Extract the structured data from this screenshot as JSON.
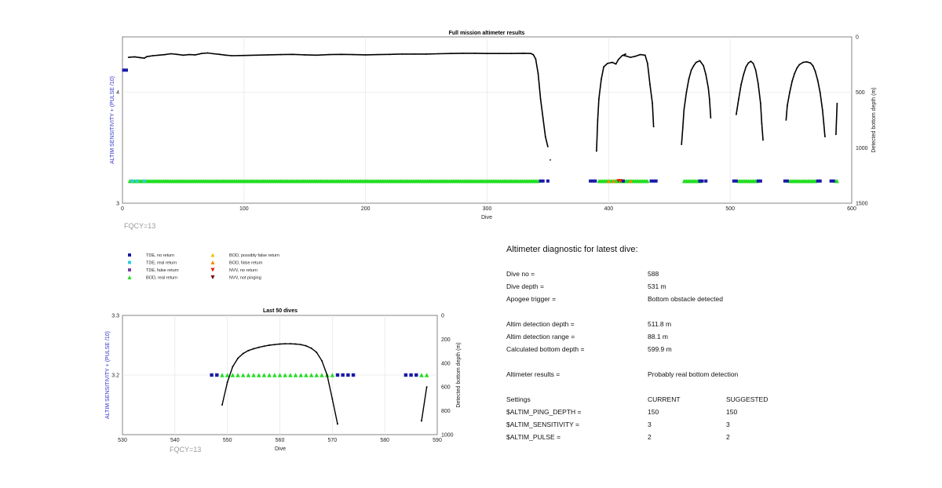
{
  "colors": {
    "tde_no_return": "#1a1aa8",
    "tde_real_return": "#33ccdd",
    "tde_false_return": "#7a3fa8",
    "bod_real_return": "#22dd22",
    "bod_possibly_false": "#f0c000",
    "bod_false_return": "#f08a00",
    "nvv_no_return": "#dd2200",
    "nvv_not_pinging": "#770000",
    "depth_line": "#000000",
    "left_axis_label": "#3333cc"
  },
  "chart_data": [
    {
      "type": "scatter",
      "title": "Full mission altimeter results",
      "xlabel": "Dive",
      "ylabel": "ALTIM SENSITIVITY + (PULSE /10)",
      "y2label": "Detected bottom depth (m)",
      "xlim": [
        0,
        600
      ],
      "ylim": [
        3,
        4.5
      ],
      "y2lim": [
        1500,
        0
      ],
      "x_ticks": [
        "0",
        "100",
        "200",
        "300",
        "400",
        "500",
        "600"
      ],
      "y_ticks": [
        "3",
        "4"
      ],
      "y2_ticks": [
        "0",
        "500",
        "1000",
        "1500"
      ],
      "grid": true,
      "footnote": "FQCY=13",
      "depth_segments": [
        [
          [
            5,
            185
          ],
          [
            10,
            180
          ],
          [
            15,
            188
          ],
          [
            18,
            192
          ],
          [
            20,
            178
          ],
          [
            25,
            170
          ],
          [
            30,
            165
          ],
          [
            35,
            160
          ],
          [
            40,
            152
          ],
          [
            45,
            158
          ],
          [
            50,
            165
          ],
          [
            55,
            160
          ],
          [
            60,
            162
          ],
          [
            65,
            150
          ],
          [
            70,
            145
          ],
          [
            75,
            152
          ],
          [
            80,
            158
          ],
          [
            85,
            165
          ],
          [
            90,
            170
          ],
          [
            100,
            168
          ],
          [
            110,
            165
          ],
          [
            120,
            162
          ],
          [
            130,
            160
          ],
          [
            140,
            158
          ],
          [
            150,
            162
          ],
          [
            160,
            165
          ],
          [
            170,
            160
          ],
          [
            180,
            158
          ],
          [
            190,
            160
          ],
          [
            200,
            162
          ],
          [
            210,
            160
          ],
          [
            220,
            158
          ],
          [
            230,
            155
          ],
          [
            240,
            155
          ],
          [
            250,
            155
          ],
          [
            260,
            152
          ],
          [
            270,
            150
          ],
          [
            280,
            148
          ],
          [
            290,
            148
          ],
          [
            300,
            150
          ],
          [
            310,
            150
          ],
          [
            320,
            150
          ],
          [
            330,
            148
          ],
          [
            336,
            150
          ],
          [
            338,
            160
          ],
          [
            340,
            200
          ],
          [
            342,
            330
          ],
          [
            344,
            560
          ],
          [
            346,
            730
          ],
          [
            348,
            900
          ],
          [
            350,
            990
          ]
        ],
        [
          [
            352,
            1110
          ]
        ],
        [
          [
            390,
            1030
          ],
          [
            391,
            750
          ],
          [
            392,
            560
          ],
          [
            394,
            380
          ],
          [
            396,
            270
          ],
          [
            399,
            240
          ],
          [
            403,
            230
          ],
          [
            406,
            245
          ],
          [
            408,
            205
          ],
          [
            411,
            170
          ],
          [
            414,
            155
          ]
        ],
        [
          [
            412,
            165
          ],
          [
            418,
            185
          ],
          [
            422,
            175
          ],
          [
            426,
            160
          ],
          [
            430,
            165
          ],
          [
            432,
            240
          ],
          [
            434,
            430
          ],
          [
            436,
            600
          ],
          [
            437,
            810
          ]
        ],
        [
          [
            460,
            970
          ],
          [
            461,
            820
          ],
          [
            462,
            660
          ],
          [
            464,
            500
          ],
          [
            466,
            380
          ],
          [
            468,
            300
          ],
          [
            470,
            260
          ],
          [
            472,
            230
          ],
          [
            475,
            215
          ],
          [
            478,
            260
          ],
          [
            480,
            340
          ],
          [
            482,
            460
          ],
          [
            483,
            560
          ],
          [
            484,
            730
          ]
        ],
        [
          [
            505,
            700
          ],
          [
            507,
            560
          ],
          [
            509,
            430
          ],
          [
            511,
            340
          ],
          [
            513,
            270
          ],
          [
            515,
            235
          ],
          [
            517,
            220
          ],
          [
            519,
            240
          ],
          [
            521,
            300
          ],
          [
            523,
            420
          ],
          [
            525,
            600
          ],
          [
            526,
            780
          ],
          [
            527,
            930
          ]
        ],
        [
          [
            546,
            750
          ],
          [
            547,
            620
          ],
          [
            549,
            500
          ],
          [
            551,
            400
          ],
          [
            553,
            330
          ],
          [
            555,
            280
          ],
          [
            557,
            250
          ],
          [
            560,
            230
          ],
          [
            563,
            225
          ],
          [
            566,
            235
          ],
          [
            568,
            260
          ],
          [
            570,
            310
          ],
          [
            572,
            390
          ],
          [
            574,
            500
          ],
          [
            576,
            660
          ],
          [
            577,
            780
          ],
          [
            578,
            900
          ]
        ],
        [
          [
            587,
            880
          ],
          [
            588,
            600
          ]
        ]
      ],
      "markers": {
        "left_marker_y": 4.2,
        "row_y": 3.2,
        "tde_no_return_x": [
          344,
          346,
          350,
          385,
          387,
          389,
          412,
          435,
          437,
          439,
          475,
          477,
          480,
          503,
          505,
          523,
          525,
          545,
          547,
          572,
          574,
          583,
          585
        ],
        "tde_real_return_x": [
          8,
          12,
          18
        ],
        "bod_real_return_range": [
          [
            6,
            342
          ],
          [
            392,
            432
          ],
          [
            462,
            476
          ],
          [
            507,
            522
          ],
          [
            549,
            570
          ],
          [
            587,
            588
          ]
        ],
        "bod_false_return_x": [
          400,
          404,
          418
        ],
        "nvv_no_return_x": [
          408,
          410
        ]
      }
    },
    {
      "type": "scatter",
      "title": "Last 50 dives",
      "xlabel": "Dive",
      "ylabel": "ALTIM SENSITIVITY + (PULSE /10)",
      "y2label": "Detected bottom depth (m)",
      "xlim": [
        530,
        590
      ],
      "ylim": [
        3.1,
        3.3
      ],
      "y2lim": [
        1000,
        0
      ],
      "x_ticks": [
        "530",
        "540",
        "550",
        "560",
        "570",
        "580",
        "590"
      ],
      "y_ticks": [
        "3.2",
        "3.3"
      ],
      "y2_ticks": [
        "0",
        "200",
        "400",
        "600",
        "800",
        "1000"
      ],
      "grid": true,
      "footnote": "FQCY=13",
      "depth_segments": [
        [
          [
            549,
            750
          ],
          [
            550,
            560
          ],
          [
            551,
            430
          ],
          [
            552,
            360
          ],
          [
            553,
            320
          ],
          [
            554,
            295
          ],
          [
            555,
            280
          ],
          [
            556,
            268
          ],
          [
            557,
            258
          ],
          [
            558,
            250
          ],
          [
            559,
            245
          ],
          [
            560,
            240
          ],
          [
            561,
            238
          ],
          [
            562,
            238
          ],
          [
            563,
            240
          ],
          [
            564,
            245
          ],
          [
            565,
            255
          ],
          [
            566,
            275
          ],
          [
            567,
            310
          ],
          [
            568,
            380
          ],
          [
            569,
            500
          ],
          [
            570,
            700
          ],
          [
            571,
            910
          ]
        ],
        [
          [
            587,
            885
          ],
          [
            588,
            600
          ]
        ]
      ],
      "markers": {
        "row_y": 3.2,
        "tde_no_return_x": [
          547,
          548,
          571,
          572,
          573,
          574,
          584,
          585,
          586
        ],
        "bod_real_return_x": [
          549,
          550,
          551,
          552,
          553,
          554,
          555,
          556,
          557,
          558,
          559,
          560,
          561,
          562,
          563,
          564,
          565,
          566,
          567,
          568,
          569,
          570,
          587,
          588
        ]
      }
    }
  ],
  "legend": [
    {
      "label": "TDE, no return",
      "marker": "square",
      "color_key": "tde_no_return"
    },
    {
      "label": "TDE, real return",
      "marker": "square",
      "color_key": "tde_real_return"
    },
    {
      "label": "TDE, false return",
      "marker": "square",
      "color_key": "tde_false_return"
    },
    {
      "label": "BOD, real return",
      "marker": "triangle-up",
      "color_key": "bod_real_return"
    },
    {
      "label": "BOD, possibly false return",
      "marker": "triangle-up",
      "color_key": "bod_possibly_false"
    },
    {
      "label": "BOD, false return",
      "marker": "triangle-up",
      "color_key": "bod_false_return"
    },
    {
      "label": "NVV, no return",
      "marker": "triangle-down",
      "color_key": "nvv_no_return"
    },
    {
      "label": "NVV, not pinging",
      "marker": "triangle-down",
      "color_key": "nvv_not_pinging"
    }
  ],
  "diagnostic": {
    "title": "Altimeter diagnostic for latest dive:",
    "dive_no_label": "Dive no =",
    "dive_no_value": "588",
    "dive_depth_label": "Dive depth =",
    "dive_depth_value": "531 m",
    "apogee_label": "Apogee trigger =",
    "apogee_value": "Bottom obstacle detected",
    "altim_det_depth_label": "Altim detection depth =",
    "altim_det_depth_value": "511.8 m",
    "altim_det_range_label": "Altim detection range =",
    "altim_det_range_value": "88.1 m",
    "calc_bottom_label": "Calculated bottom depth =",
    "calc_bottom_value": "599.9 m",
    "results_label": "Altimeter results =",
    "results_value": "Probably real bottom detection",
    "settings_label": "Settings",
    "current_label": "CURRENT",
    "suggested_label": "SUGGESTED",
    "ping_depth_label": "$ALTIM_PING_DEPTH =",
    "ping_depth_current": "150",
    "ping_depth_suggested": "150",
    "sensitivity_label": "$ALTIM_SENSITIVITY =",
    "sensitivity_current": "3",
    "sensitivity_suggested": "3",
    "pulse_label": "$ALTIM_PULSE =",
    "pulse_current": "2",
    "pulse_suggested": "2"
  }
}
